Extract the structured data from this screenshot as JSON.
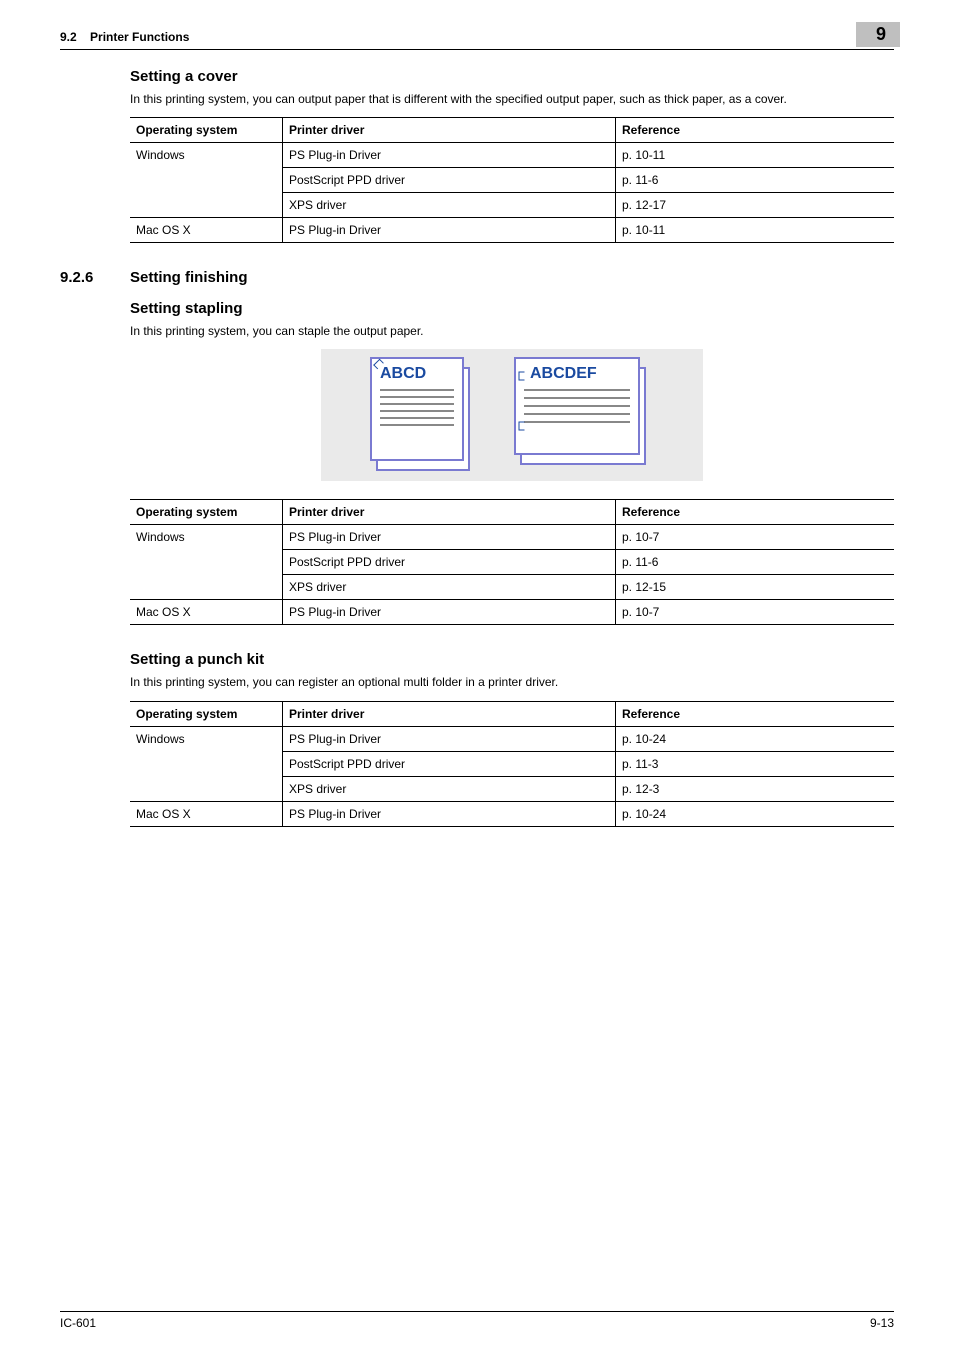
{
  "header": {
    "section_num": "9.2",
    "section_title": "Printer Functions",
    "chapter_badge": "9"
  },
  "cover": {
    "heading": "Setting a cover",
    "para": "In this printing system, you can output paper that is different with the specified output paper, such as thick paper, as a cover.",
    "table": {
      "headers": [
        "Operating system",
        "Printer driver",
        "Reference"
      ],
      "rows": [
        {
          "os": "Windows",
          "driver": "PS Plug-in Driver",
          "ref": "p. 10-11",
          "show_os": true,
          "rowspan": 3
        },
        {
          "os": "",
          "driver": "PostScript PPD driver",
          "ref": "p. 11-6",
          "show_os": false
        },
        {
          "os": "",
          "driver": "XPS driver",
          "ref": "p. 12-17",
          "show_os": false
        },
        {
          "os": "Mac OS X",
          "driver": "PS Plug-in Driver",
          "ref": "p. 10-11",
          "show_os": true,
          "rowspan": 1
        }
      ]
    }
  },
  "finishing": {
    "sec_number": "9.2.6",
    "sec_title": "Setting finishing"
  },
  "stapling": {
    "heading": "Setting stapling",
    "para": "In this printing system, you can staple the output paper.",
    "illus": {
      "left_label": "ABCD",
      "right_label": "ABCDEF"
    },
    "table": {
      "headers": [
        "Operating system",
        "Printer driver",
        "Reference"
      ],
      "rows": [
        {
          "os": "Windows",
          "driver": "PS Plug-in Driver",
          "ref": "p. 10-7",
          "show_os": true,
          "rowspan": 3
        },
        {
          "os": "",
          "driver": "PostScript PPD driver",
          "ref": "p. 11-6",
          "show_os": false
        },
        {
          "os": "",
          "driver": "XPS driver",
          "ref": "p. 12-15",
          "show_os": false
        },
        {
          "os": "Mac OS X",
          "driver": "PS Plug-in Driver",
          "ref": "p. 10-7",
          "show_os": true,
          "rowspan": 1
        }
      ]
    }
  },
  "punch": {
    "heading": "Setting a punch kit",
    "para": "In this printing system, you can register an optional multi folder in a printer driver.",
    "table": {
      "headers": [
        "Operating system",
        "Printer driver",
        "Reference"
      ],
      "rows": [
        {
          "os": "Windows",
          "driver": "PS Plug-in Driver",
          "ref": "p. 10-24",
          "show_os": true,
          "rowspan": 3
        },
        {
          "os": "",
          "driver": "PostScript PPD driver",
          "ref": "p. 11-3",
          "show_os": false
        },
        {
          "os": "",
          "driver": "XPS driver",
          "ref": "p. 12-3",
          "show_os": false
        },
        {
          "os": "Mac OS X",
          "driver": "PS Plug-in Driver",
          "ref": "p. 10-24",
          "show_os": true,
          "rowspan": 1
        }
      ]
    }
  },
  "footer": {
    "left": "IC-601",
    "right": "9-13"
  }
}
